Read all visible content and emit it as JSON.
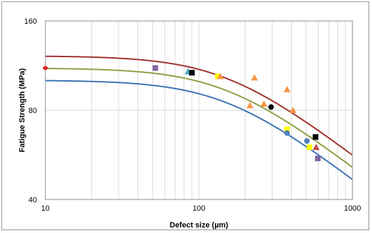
{
  "chart_data": {
    "type": "scatter",
    "xlabel": "Defect size (µm)",
    "ylabel": "Fatigue Strength (MPa)",
    "x_scale": "log",
    "y_scale": "log",
    "xlim": [
      10,
      1000
    ],
    "ylim": [
      40,
      160
    ],
    "x_ticks": [
      10,
      100,
      1000
    ],
    "x_tick_labels": [
      "10",
      "100",
      "1000"
    ],
    "y_ticks": [
      40,
      80,
      160
    ],
    "y_tick_labels": [
      "40",
      "80",
      "160"
    ],
    "grid": "vertical minor log gridlines",
    "legend": "none",
    "curves": [
      {
        "color": "#a0322d",
        "plateau": 122,
        "knee": 150,
        "slope": -0.4
      },
      {
        "color": "#8ea044",
        "plateau": 111,
        "knee": 150,
        "slope": -0.4
      },
      {
        "color": "#3d73b5",
        "plateau": 101,
        "knee": 150,
        "slope": -0.4
      }
    ],
    "points": [
      {
        "x": 10,
        "y": 111,
        "shape": "diamond",
        "color": "#ff0000"
      },
      {
        "x": 52,
        "y": 111,
        "shape": "square",
        "color": "#7f63a1"
      },
      {
        "x": 85,
        "y": 108,
        "shape": "triangle",
        "color": "#4bacc6"
      },
      {
        "x": 90,
        "y": 107,
        "shape": "square",
        "color": "#000000"
      },
      {
        "x": 133,
        "y": 104,
        "shape": "square",
        "color": "#ffff00"
      },
      {
        "x": 138,
        "y": 104,
        "shape": "triangle",
        "color": "#f79646"
      },
      {
        "x": 230,
        "y": 103,
        "shape": "triangle",
        "color": "#f79646"
      },
      {
        "x": 215,
        "y": 83,
        "shape": "triangle",
        "color": "#f79646"
      },
      {
        "x": 265,
        "y": 84,
        "shape": "triangle",
        "color": "#f79646"
      },
      {
        "x": 295,
        "y": 82,
        "shape": "circle",
        "color": "#000000"
      },
      {
        "x": 375,
        "y": 94,
        "shape": "triangle",
        "color": "#f79646"
      },
      {
        "x": 410,
        "y": 80,
        "shape": "triangle",
        "color": "#f79646"
      },
      {
        "x": 375,
        "y": 69,
        "shape": "square",
        "color": "#ffff00"
      },
      {
        "x": 375,
        "y": 67,
        "shape": "circle",
        "color": "#4f81bd"
      },
      {
        "x": 575,
        "y": 65,
        "shape": "square",
        "color": "#000000"
      },
      {
        "x": 505,
        "y": 63,
        "shape": "circle",
        "color": "#4f81bd"
      },
      {
        "x": 525,
        "y": 60,
        "shape": "square",
        "color": "#ffff00"
      },
      {
        "x": 580,
        "y": 60,
        "shape": "triangle",
        "color": "#c0504d"
      },
      {
        "x": 595,
        "y": 55,
        "shape": "square",
        "color": "#7f63a1"
      }
    ]
  }
}
